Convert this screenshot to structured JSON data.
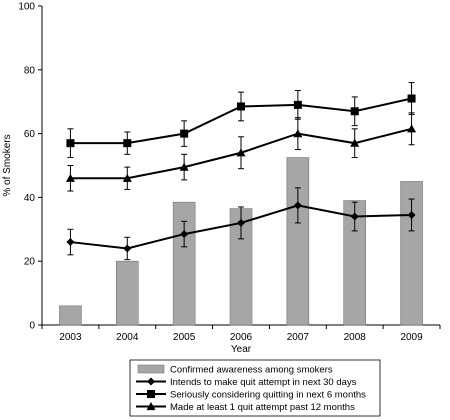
{
  "chart_data": {
    "type": "bar",
    "xlabel": "Year",
    "ylabel": "% of Smokers",
    "ylim": [
      0,
      100
    ],
    "yticks": [
      0,
      20,
      40,
      60,
      80,
      100
    ],
    "categories": [
      "2003",
      "2004",
      "2005",
      "2006",
      "2007",
      "2008",
      "2009"
    ],
    "bar_series": {
      "name": "Confirmed awareness among smokers",
      "values": [
        6,
        20,
        38.5,
        36.5,
        52.5,
        39,
        45
      ],
      "color": "#a6a6a6"
    },
    "line_series": [
      {
        "name": "Intends to make quit attempt in next 30 days",
        "marker": "diamond",
        "values": [
          26,
          24,
          28.5,
          32,
          37.5,
          34,
          34.5
        ],
        "error": [
          4,
          3.5,
          4,
          5,
          5.5,
          4.5,
          5
        ]
      },
      {
        "name": "Seriously considering quitting in next 6 months",
        "marker": "square",
        "values": [
          57,
          57,
          60,
          68.5,
          69,
          67,
          71
        ],
        "error": [
          4.5,
          3.5,
          4,
          4.5,
          4.5,
          4.5,
          5
        ]
      },
      {
        "name": "Made at least 1 quit attempt past 12 months",
        "marker": "triangle",
        "values": [
          46,
          46,
          49.5,
          54,
          60,
          57,
          61.5
        ],
        "error": [
          4,
          3.5,
          4,
          5,
          5,
          4.5,
          5
        ]
      }
    ],
    "grid": false,
    "legend_position": "bottom"
  }
}
